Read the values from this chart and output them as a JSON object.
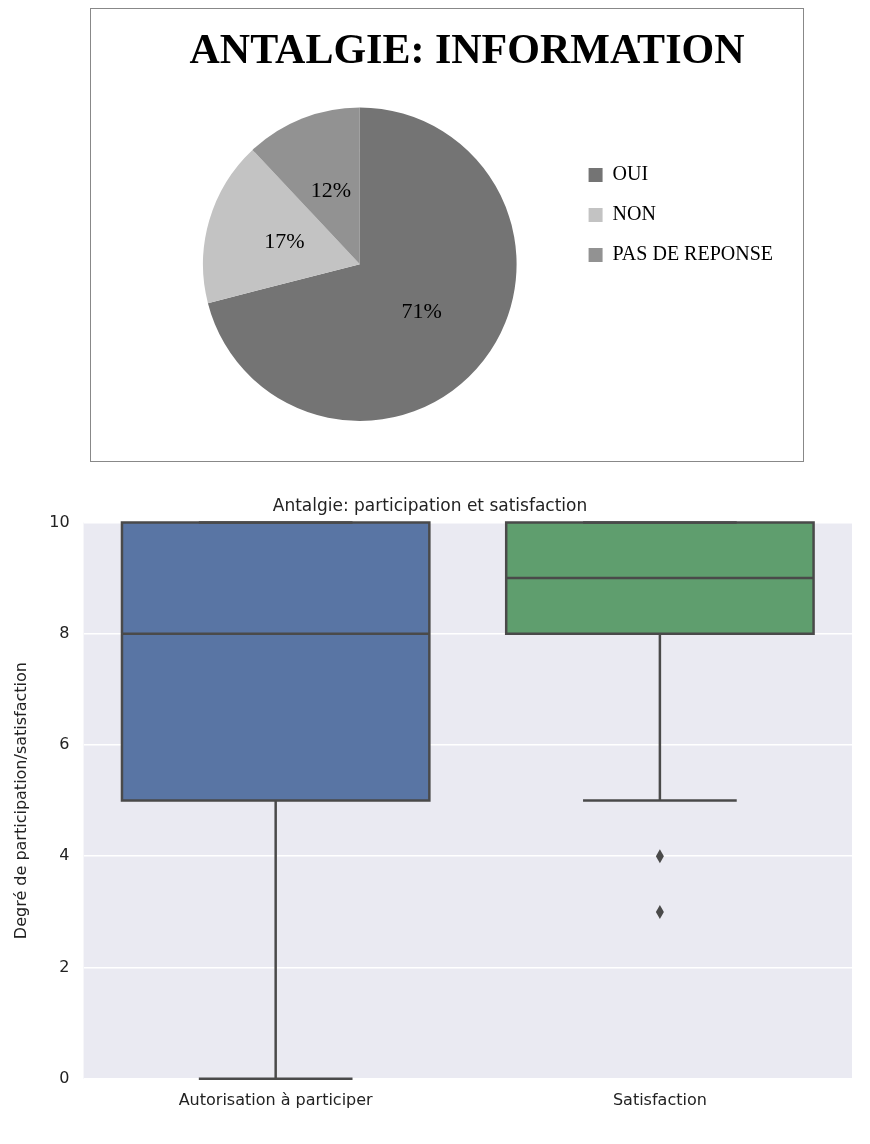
{
  "chart_data": [
    {
      "type": "pie",
      "title": "ANTALGIE: INFORMATION",
      "categories": [
        "OUI",
        "NON",
        "PAS DE REPONSE"
      ],
      "values": [
        71,
        17,
        12
      ],
      "value_labels": [
        "71%",
        "17%",
        "12%"
      ],
      "colors": [
        "#747474",
        "#c3c3c3",
        "#929292"
      ],
      "legend": "right"
    },
    {
      "type": "box",
      "title": "Antalgie: participation et satisfaction",
      "ylabel": "Degré de participation/satisfaction",
      "categories": [
        "Autorisation à participer",
        "Satisfaction"
      ],
      "boxes": [
        {
          "low": 0,
          "q1": 5,
          "median": 8,
          "q3": 10,
          "high": 10
        },
        {
          "low": 5,
          "q1": 8,
          "median": 9,
          "q3": 10,
          "high": 10,
          "outliers": [
            4,
            3
          ]
        }
      ],
      "colors": [
        "#5975a4",
        "#5f9e6e"
      ],
      "ylim": [
        0,
        10
      ],
      "yticks": [
        0,
        2,
        4,
        6,
        8,
        10
      ],
      "grid": "y"
    }
  ]
}
